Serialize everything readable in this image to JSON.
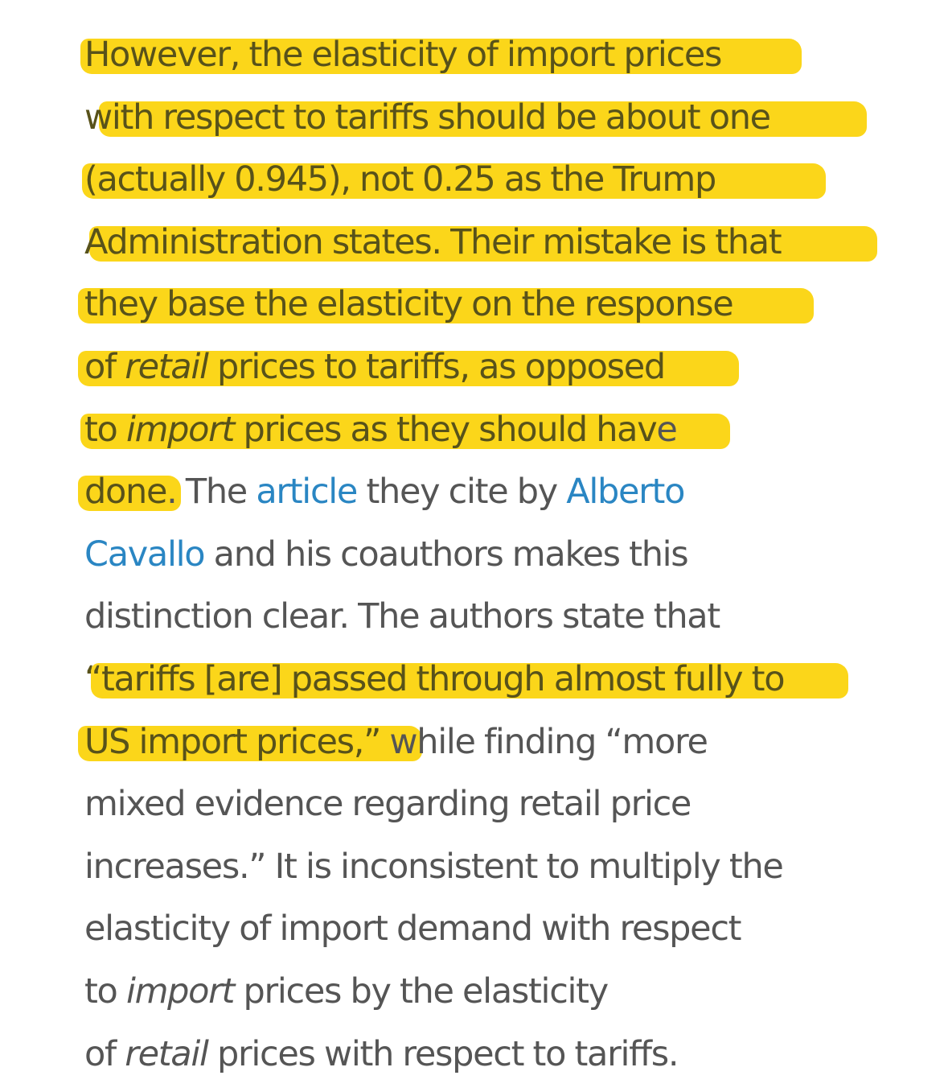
{
  "lines": [
    {
      "parts": [
        {
          "text": "However, the elasticity of import prices",
          "marked": true
        }
      ]
    },
    {
      "parts": [
        {
          "text": "with respect to tariffs should be about one",
          "marked": true
        }
      ]
    },
    {
      "parts": [
        {
          "text": "(actually 0.945), not 0.25 as the Trump",
          "marked": true
        }
      ]
    },
    {
      "parts": [
        {
          "text": "Administration states. Their mistake is that",
          "marked": true
        }
      ]
    },
    {
      "parts": [
        {
          "text": "they base the elasticity on the response",
          "marked": true
        }
      ]
    },
    {
      "parts": [
        {
          "text": "of ",
          "marked": true
        },
        {
          "text": "retail",
          "marked": true,
          "italic": true
        },
        {
          "text": " prices to tariffs, as opposed",
          "marked": true
        }
      ]
    },
    {
      "parts": [
        {
          "text": "to ",
          "marked": true
        },
        {
          "text": "import",
          "marked": true,
          "italic": true
        },
        {
          "text": " prices as they should hav",
          "marked": true
        },
        {
          "text": "e"
        }
      ]
    },
    {
      "parts": [
        {
          "text": "done",
          "marked": true
        },
        {
          "text": ". The "
        },
        {
          "text": "article",
          "link": true
        },
        {
          "text": " they cite by "
        },
        {
          "text": "Alberto",
          "link": true
        }
      ]
    },
    {
      "parts": [
        {
          "text": "Cavallo",
          "link": true
        },
        {
          "text": " and his coauthors makes this"
        }
      ]
    },
    {
      "parts": [
        {
          "text": "distinction clear. The authors state that"
        }
      ]
    },
    {
      "parts": [
        {
          "text": "“tariffs [are] passed through almost fully to",
          "marked": true
        }
      ]
    },
    {
      "parts": [
        {
          "text": "US import prices,”",
          "marked": true
        },
        {
          "text": " while finding “more"
        }
      ]
    },
    {
      "parts": [
        {
          "text": "mixed evidence regarding retail price"
        }
      ]
    },
    {
      "parts": [
        {
          "text": "increases.” It is inconsistent to multiply the"
        }
      ]
    },
    {
      "parts": [
        {
          "text": "elasticity of import demand with respect"
        }
      ]
    },
    {
      "parts": [
        {
          "text": "to "
        },
        {
          "text": "import",
          "italic": true
        },
        {
          "text": " prices by the elasticity"
        }
      ]
    },
    {
      "parts": [
        {
          "text": "of "
        },
        {
          "text": "retail",
          "italic": true
        },
        {
          "text": " prices with respect to tariffs."
        }
      ]
    }
  ],
  "colors": {
    "text": "#555555",
    "highlight": "#fbd61a",
    "highlighted_text": "#58521a",
    "link": "#2a86c3",
    "background": "#ffffff"
  }
}
